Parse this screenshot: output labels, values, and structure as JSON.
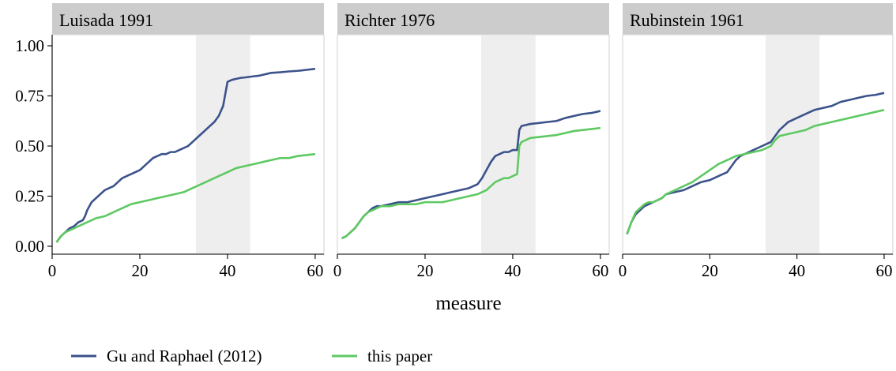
{
  "chart_data": [
    {
      "type": "line",
      "title": "Luisada 1991",
      "xlabel": "measure",
      "ylabel": "",
      "xlim": [
        0,
        62
      ],
      "ylim": [
        0,
        1
      ],
      "xticks": [
        "0",
        "20",
        "40",
        "60"
      ],
      "yticks": [
        "0.00",
        "0.25",
        "0.50",
        "0.75",
        "1.00"
      ],
      "shaded_region": [
        32.8,
        45.2
      ],
      "series": [
        {
          "name": "Gu and Raphael (2012)",
          "color": "#3b528b",
          "x": [
            1,
            2,
            3,
            4,
            5,
            6,
            7,
            7.5,
            8,
            9,
            10,
            11,
            12,
            13,
            14,
            15,
            16,
            17,
            18,
            19,
            20,
            21,
            22,
            23,
            24,
            25,
            26,
            27,
            28,
            29,
            30,
            31,
            32,
            33,
            34,
            35,
            36,
            37,
            38,
            39,
            39.5,
            40,
            41,
            42,
            43,
            44,
            45,
            46,
            47,
            48,
            49,
            50,
            52,
            54,
            56,
            58,
            60
          ],
          "y": [
            0.02,
            0.05,
            0.07,
            0.09,
            0.1,
            0.12,
            0.13,
            0.15,
            0.18,
            0.22,
            0.24,
            0.26,
            0.28,
            0.29,
            0.3,
            0.32,
            0.34,
            0.35,
            0.36,
            0.37,
            0.38,
            0.4,
            0.42,
            0.44,
            0.45,
            0.46,
            0.46,
            0.47,
            0.47,
            0.48,
            0.49,
            0.5,
            0.52,
            0.54,
            0.56,
            0.58,
            0.6,
            0.62,
            0.65,
            0.7,
            0.76,
            0.82,
            0.83,
            0.835,
            0.84,
            0.842,
            0.845,
            0.848,
            0.85,
            0.855,
            0.86,
            0.865,
            0.868,
            0.872,
            0.875,
            0.88,
            0.885
          ]
        },
        {
          "name": "this paper",
          "color": "#5ec962",
          "x": [
            1,
            2,
            3,
            4,
            5,
            6,
            7,
            8,
            10,
            12,
            14,
            16,
            18,
            20,
            22,
            24,
            26,
            28,
            30,
            32,
            34,
            36,
            38,
            40,
            42,
            44,
            46,
            48,
            50,
            52,
            54,
            56,
            58,
            60
          ],
          "y": [
            0.02,
            0.05,
            0.07,
            0.08,
            0.09,
            0.1,
            0.11,
            0.12,
            0.14,
            0.15,
            0.17,
            0.19,
            0.21,
            0.22,
            0.23,
            0.24,
            0.25,
            0.26,
            0.27,
            0.29,
            0.31,
            0.33,
            0.35,
            0.37,
            0.39,
            0.4,
            0.41,
            0.42,
            0.43,
            0.44,
            0.44,
            0.45,
            0.455,
            0.46
          ]
        }
      ]
    },
    {
      "type": "line",
      "title": "Richter 1976",
      "xlabel": "measure",
      "ylabel": "",
      "xlim": [
        0,
        62
      ],
      "ylim": [
        0,
        1
      ],
      "xticks": [
        "0",
        "20",
        "40",
        "60"
      ],
      "yticks": [],
      "shaded_region": [
        32.8,
        45.2
      ],
      "series": [
        {
          "name": "Gu and Raphael (2012)",
          "color": "#3b528b",
          "x": [
            1,
            2,
            3,
            4,
            5,
            6,
            7,
            8,
            9,
            10,
            12,
            14,
            16,
            18,
            20,
            22,
            24,
            26,
            28,
            30,
            31,
            32,
            33,
            34,
            35,
            36,
            37,
            38,
            39,
            40,
            41,
            41.5,
            42,
            44,
            46,
            48,
            50,
            52,
            54,
            56,
            58,
            60
          ],
          "y": [
            0.04,
            0.05,
            0.07,
            0.09,
            0.12,
            0.15,
            0.17,
            0.19,
            0.2,
            0.2,
            0.21,
            0.22,
            0.22,
            0.23,
            0.24,
            0.25,
            0.26,
            0.27,
            0.28,
            0.29,
            0.3,
            0.31,
            0.34,
            0.38,
            0.42,
            0.45,
            0.46,
            0.47,
            0.47,
            0.48,
            0.48,
            0.58,
            0.6,
            0.61,
            0.615,
            0.62,
            0.625,
            0.64,
            0.65,
            0.66,
            0.665,
            0.675
          ]
        },
        {
          "name": "this paper",
          "color": "#5ec962",
          "x": [
            1,
            2,
            3,
            4,
            5,
            6,
            7,
            8,
            9,
            10,
            12,
            14,
            16,
            18,
            20,
            22,
            24,
            26,
            28,
            30,
            32,
            33,
            34,
            35,
            36,
            37,
            38,
            39,
            40,
            41,
            41.5,
            42,
            44,
            46,
            48,
            50,
            52,
            54,
            56,
            58,
            60
          ],
          "y": [
            0.04,
            0.05,
            0.07,
            0.09,
            0.12,
            0.15,
            0.17,
            0.18,
            0.19,
            0.2,
            0.2,
            0.21,
            0.21,
            0.21,
            0.22,
            0.22,
            0.22,
            0.23,
            0.24,
            0.25,
            0.26,
            0.27,
            0.28,
            0.3,
            0.32,
            0.33,
            0.34,
            0.34,
            0.35,
            0.36,
            0.5,
            0.52,
            0.54,
            0.545,
            0.55,
            0.555,
            0.565,
            0.575,
            0.58,
            0.585,
            0.59
          ]
        }
      ]
    },
    {
      "type": "line",
      "title": "Rubinstein 1961",
      "xlabel": "measure",
      "ylabel": "",
      "xlim": [
        0,
        62
      ],
      "ylim": [
        0,
        1
      ],
      "xticks": [
        "0",
        "20",
        "40",
        "60"
      ],
      "yticks": [],
      "shaded_region": [
        32.8,
        45.2
      ],
      "series": [
        {
          "name": "Gu and Raphael (2012)",
          "color": "#3b528b",
          "x": [
            1,
            2,
            3,
            4,
            5,
            6,
            7,
            8,
            9,
            10,
            12,
            14,
            16,
            18,
            20,
            22,
            24,
            25,
            26,
            27,
            28,
            29,
            30,
            32,
            33,
            34,
            35,
            36,
            37,
            38,
            40,
            42,
            44,
            46,
            48,
            50,
            52,
            54,
            56,
            58,
            60
          ],
          "y": [
            0.06,
            0.12,
            0.16,
            0.18,
            0.2,
            0.21,
            0.22,
            0.23,
            0.24,
            0.26,
            0.27,
            0.28,
            0.3,
            0.32,
            0.33,
            0.35,
            0.37,
            0.4,
            0.43,
            0.45,
            0.46,
            0.47,
            0.48,
            0.5,
            0.51,
            0.52,
            0.55,
            0.58,
            0.6,
            0.62,
            0.64,
            0.66,
            0.68,
            0.69,
            0.7,
            0.72,
            0.73,
            0.74,
            0.75,
            0.755,
            0.765
          ]
        },
        {
          "name": "this paper",
          "color": "#5ec962",
          "x": [
            1,
            2,
            3,
            4,
            5,
            6,
            7,
            8,
            9,
            10,
            12,
            14,
            16,
            18,
            20,
            22,
            24,
            26,
            28,
            30,
            32,
            34,
            35,
            36,
            38,
            40,
            42,
            44,
            46,
            48,
            50,
            52,
            54,
            56,
            58,
            60
          ],
          "y": [
            0.06,
            0.12,
            0.17,
            0.19,
            0.21,
            0.22,
            0.22,
            0.23,
            0.24,
            0.26,
            0.28,
            0.3,
            0.32,
            0.35,
            0.38,
            0.41,
            0.43,
            0.45,
            0.46,
            0.47,
            0.48,
            0.5,
            0.53,
            0.55,
            0.56,
            0.57,
            0.58,
            0.6,
            0.61,
            0.62,
            0.63,
            0.64,
            0.65,
            0.66,
            0.67,
            0.68
          ]
        }
      ]
    }
  ],
  "legend": {
    "position": "bottom-left",
    "items": [
      {
        "label": "Gu and Raphael (2012)",
        "color": "#3b528b"
      },
      {
        "label": "this paper",
        "color": "#5ec962"
      }
    ]
  }
}
